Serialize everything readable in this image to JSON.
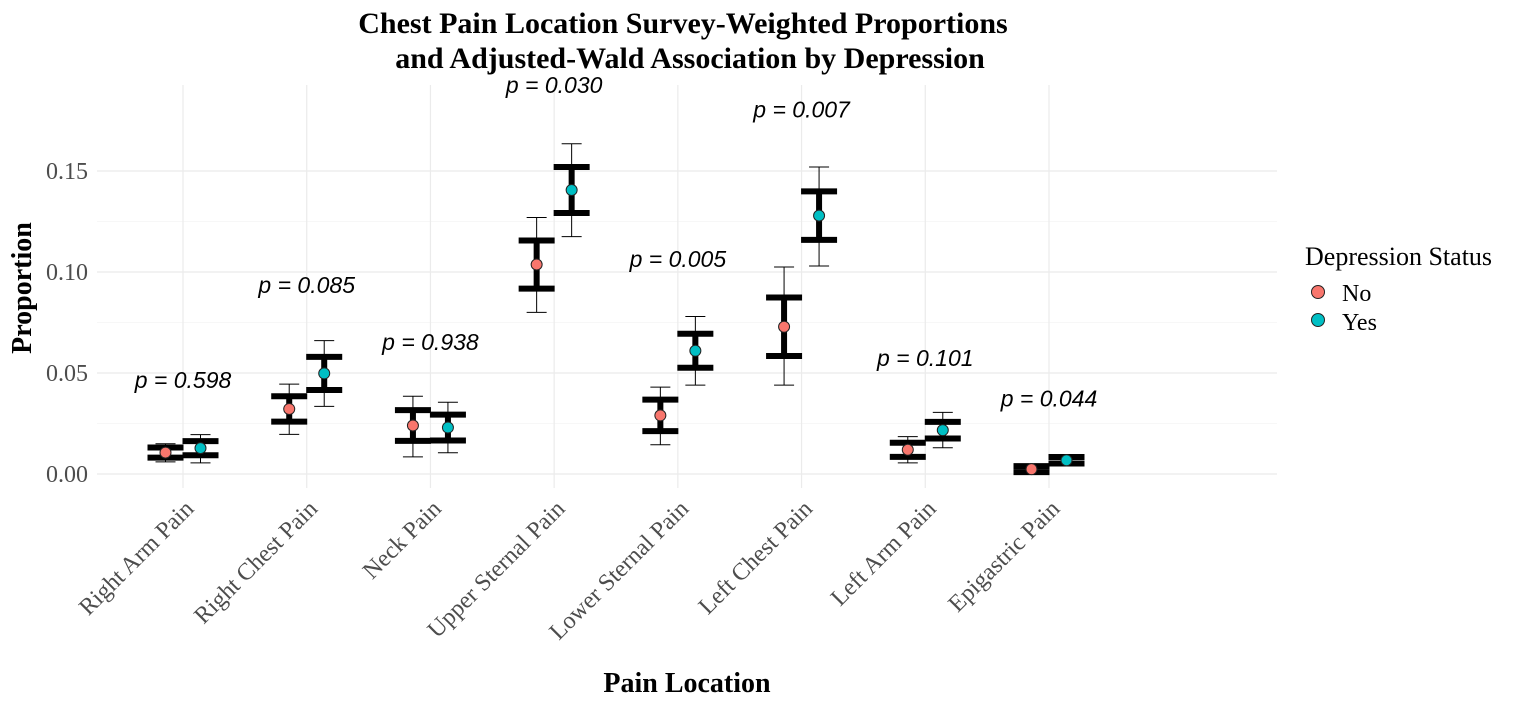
{
  "chart_data": {
    "type": "scatter",
    "title": [
      "Chest Pain Location Survey-Weighted Proportions",
      "and Adjusted-Wald Association by Depression"
    ],
    "xlabel": "Pain Location",
    "ylabel": "Proportion",
    "ylim": [
      -0.005,
      0.175
    ],
    "yticks": [
      "0.00",
      "0.05",
      "0.10",
      "0.15"
    ],
    "ytick_values": [
      0,
      0.05,
      0.1,
      0.15
    ],
    "grid": true,
    "legend": {
      "title": "Depression Status",
      "placement": "right",
      "entries": [
        {
          "label": "No",
          "color": "#F8766D"
        },
        {
          "label": "Yes",
          "color": "#00BFC4"
        }
      ]
    },
    "categories": [
      "Right Arm Pain",
      "Right Chest Pain",
      "Neck Pain",
      "Upper Sternal Pain",
      "Lower Sternal Pain",
      "Left Chest Pain",
      "Left Arm Pain",
      "Epigastric Pain"
    ],
    "p_values": [
      "p = 0.598",
      "p = 0.085",
      "p = 0.938",
      "p = 0.030",
      "p = 0.005",
      "p = 0.007",
      "p = 0.101",
      "p = 0.044"
    ],
    "p_value_y": [
      0.0425,
      0.0895,
      0.0615,
      0.1885,
      0.1025,
      0.1765,
      0.0535,
      0.0335
    ],
    "series": [
      {
        "name": "No",
        "color": "#F8766D",
        "values": [
          0.0106,
          0.0322,
          0.024,
          0.1037,
          0.029,
          0.0729,
          0.012,
          0.0024
        ],
        "inner_low": [
          0.0081,
          0.0259,
          0.0164,
          0.0918,
          0.0212,
          0.0584,
          0.0085,
          0.0009
        ],
        "inner_high": [
          0.0131,
          0.0385,
          0.0316,
          0.1156,
          0.0368,
          0.0874,
          0.0155,
          0.0039
        ],
        "ci_low": [
          0.006,
          0.0196,
          0.0085,
          0.08,
          0.0145,
          0.044,
          0.0055,
          0.001
        ],
        "ci_high": [
          0.015,
          0.0445,
          0.0385,
          0.127,
          0.043,
          0.1025,
          0.0185,
          0.003
        ]
      },
      {
        "name": "Yes",
        "color": "#00BFC4",
        "values": [
          0.0128,
          0.0498,
          0.023,
          0.1406,
          0.061,
          0.1279,
          0.0217,
          0.0068
        ],
        "inner_low": [
          0.0093,
          0.0416,
          0.0166,
          0.1292,
          0.0526,
          0.1159,
          0.0176,
          0.0052
        ],
        "inner_high": [
          0.0163,
          0.058,
          0.0294,
          0.152,
          0.0694,
          0.1399,
          0.0258,
          0.0084
        ],
        "ci_low": [
          0.0055,
          0.0335,
          0.0105,
          0.1175,
          0.044,
          0.103,
          0.013,
          0.0045
        ],
        "ci_high": [
          0.0195,
          0.066,
          0.0355,
          0.1635,
          0.078,
          0.152,
          0.0305,
          0.0095
        ]
      }
    ]
  }
}
